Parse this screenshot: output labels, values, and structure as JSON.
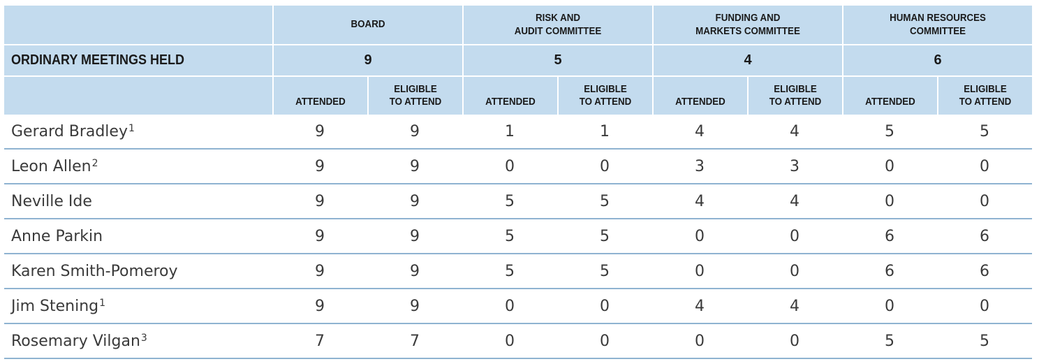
{
  "header": {
    "committees": [
      "BOARD",
      "RISK AND\nAUDIT COMMITTEE",
      "FUNDING AND\nMARKETS COMMITTEE",
      "HUMAN RESOURCES\nCOMMITTEE"
    ],
    "committee_lines": [
      [
        "",
        "BOARD"
      ],
      [
        "RISK AND",
        "AUDIT COMMITTEE"
      ],
      [
        "FUNDING AND",
        "MARKETS COMMITTEE"
      ],
      [
        "HUMAN RESOURCES",
        "COMMITTEE"
      ]
    ],
    "meetings_label": "ORDINARY MEETINGS HELD",
    "meetings_held": [
      "9",
      "5",
      "4",
      "6"
    ],
    "attended_label": "ATTENDED",
    "eligible_line1": "ELIGIBLE",
    "eligible_line2": "TO ATTEND"
  },
  "rows": [
    {
      "name": "Gerard Bradley",
      "note": "1",
      "values": [
        "9",
        "9",
        "1",
        "1",
        "4",
        "4",
        "5",
        "5"
      ]
    },
    {
      "name": "Leon Allen",
      "note": "2",
      "values": [
        "9",
        "9",
        "0",
        "0",
        "3",
        "3",
        "0",
        "0"
      ]
    },
    {
      "name": "Neville Ide",
      "note": "",
      "values": [
        "9",
        "9",
        "5",
        "5",
        "4",
        "4",
        "0",
        "0"
      ]
    },
    {
      "name": "Anne Parkin",
      "note": "",
      "values": [
        "9",
        "9",
        "5",
        "5",
        "0",
        "0",
        "6",
        "6"
      ]
    },
    {
      "name": "Karen Smith-Pomeroy",
      "note": "",
      "values": [
        "9",
        "9",
        "5",
        "5",
        "0",
        "0",
        "6",
        "6"
      ]
    },
    {
      "name": "Jim Stening",
      "note": "1",
      "values": [
        "9",
        "9",
        "0",
        "0",
        "4",
        "4",
        "0",
        "0"
      ]
    },
    {
      "name": "Rosemary Vilgan",
      "note": "3",
      "values": [
        "7",
        "7",
        "0",
        "0",
        "0",
        "0",
        "5",
        "5"
      ]
    }
  ],
  "colors": {
    "header_bg": "#c3dbee",
    "row_rule": "#8fb3d1"
  }
}
